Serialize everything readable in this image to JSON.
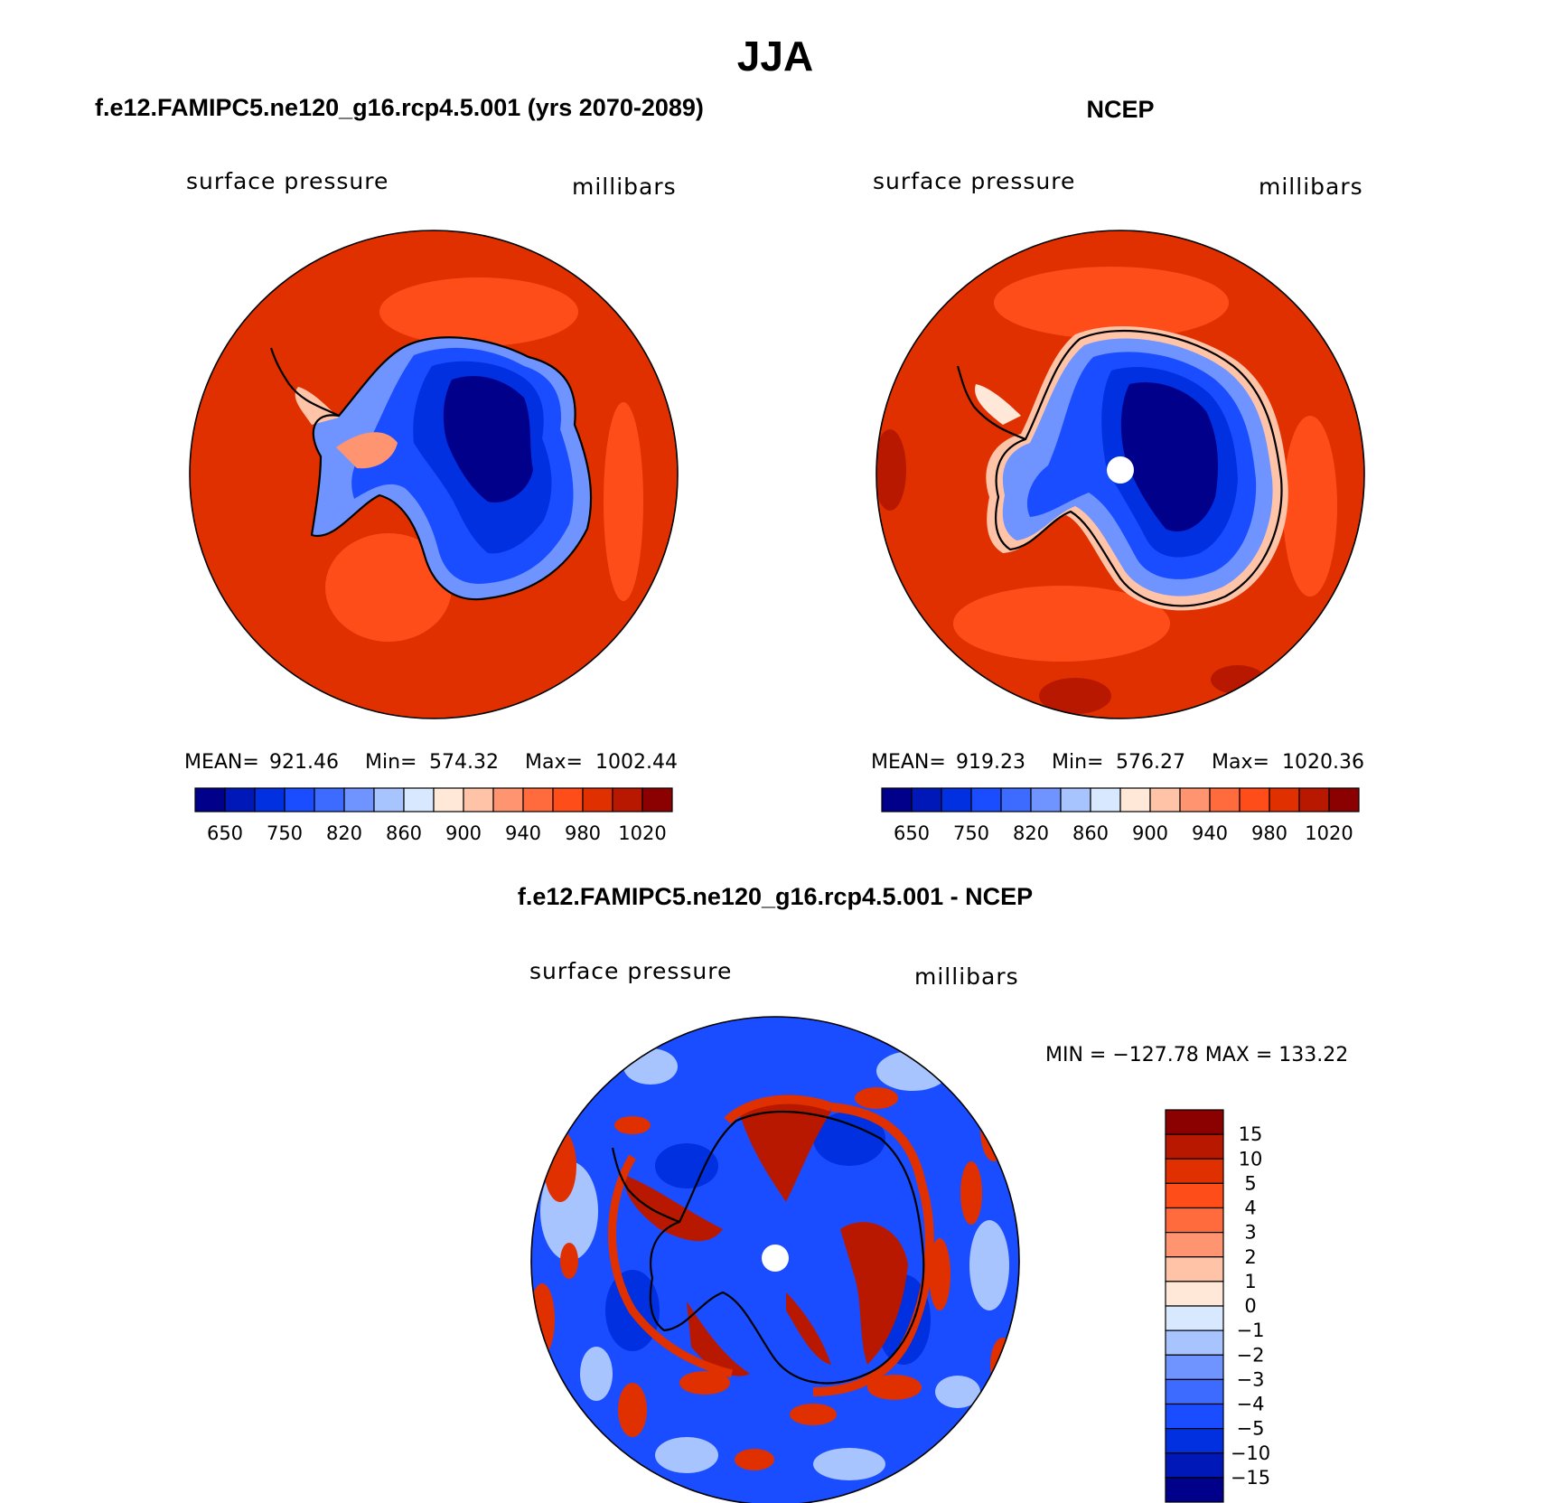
{
  "title": "JJA",
  "colors": {
    "abs_scale": [
      "#00008b",
      "#0018b8",
      "#0030e0",
      "#1a4dff",
      "#3d6bff",
      "#7094ff",
      "#a8c4ff",
      "#d8e8ff",
      "#ffe8d8",
      "#ffc4a8",
      "#ff9470",
      "#ff6b3d",
      "#ff4d1a",
      "#e03000",
      "#b81800",
      "#8b0000"
    ],
    "diff_scale": [
      "#00008b",
      "#0018b8",
      "#0030e0",
      "#1a4dff",
      "#3d6bff",
      "#7094ff",
      "#a8c4ff",
      "#d8e8ff",
      "#ffe8d8",
      "#ffc4a8",
      "#ff9470",
      "#ff6b3d",
      "#ff4d1a",
      "#e03000",
      "#b81800",
      "#8b0000"
    ]
  },
  "chart_data": [
    {
      "type": "heatmap",
      "projection": "south-polar-stereographic",
      "title": "f.e12.FAMIPC5.ne120_g16.rcp4.5.001 (yrs 2070-2089)",
      "variable": "surface pressure",
      "units": "millibars",
      "stats": {
        "mean_label": "MEAN=",
        "mean": "921.46",
        "min_label": "Min=",
        "min": "574.32",
        "max_label": "Max=",
        "max": "1002.44"
      },
      "colorbar_ticks": [
        "650",
        "750",
        "820",
        "860",
        "900",
        "940",
        "980",
        "1020"
      ],
      "colorbar_orientation": "horizontal"
    },
    {
      "type": "heatmap",
      "projection": "south-polar-stereographic",
      "title": "NCEP",
      "variable": "surface pressure",
      "units": "millibars",
      "stats": {
        "mean_label": "MEAN=",
        "mean": "919.23",
        "min_label": "Min=",
        "min": "576.27",
        "max_label": "Max=",
        "max": "1020.36"
      },
      "colorbar_ticks": [
        "650",
        "750",
        "820",
        "860",
        "900",
        "940",
        "980",
        "1020"
      ],
      "colorbar_orientation": "horizontal"
    },
    {
      "type": "heatmap",
      "projection": "south-polar-stereographic",
      "title": "f.e12.FAMIPC5.ne120_g16.rcp4.5.001 - NCEP",
      "variable": "surface pressure",
      "units": "millibars",
      "range_text": "MIN = −127.78 MAX = 133.22",
      "colorbar_ticks": [
        "15",
        "10",
        "5",
        "4",
        "3",
        "2",
        "1",
        "0",
        "−1",
        "−2",
        "−3",
        "−4",
        "−5",
        "−10",
        "−15"
      ],
      "colorbar_orientation": "vertical"
    }
  ]
}
